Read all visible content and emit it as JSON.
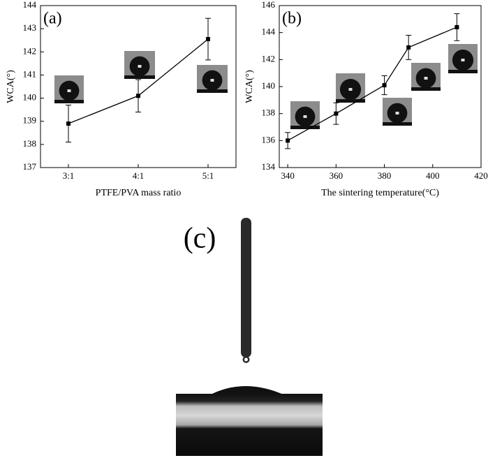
{
  "chart_data": [
    {
      "type": "line",
      "panel_label": "(a)",
      "x_label": "PTFE/PVA mass ratio",
      "y_label": "WCA(°)",
      "categories": [
        "3:1",
        "4:1",
        "5:1"
      ],
      "values": [
        138.9,
        140.1,
        142.55
      ],
      "errors": [
        0.8,
        0.7,
        0.9
      ],
      "color": "#000000",
      "ylim": [
        137,
        144
      ],
      "yticks": [
        137,
        138,
        139,
        140,
        141,
        142,
        143,
        144
      ]
    },
    {
      "type": "line",
      "panel_label": "(b)",
      "x_label": "The sintering temperature(°C)",
      "y_label": "WCA(°)",
      "x": [
        340,
        360,
        380,
        390,
        410
      ],
      "values": [
        136,
        138,
        140.1,
        142.9,
        144.4
      ],
      "errors": [
        0.6,
        0.8,
        0.7,
        0.9,
        1.0
      ],
      "color": "#000000",
      "xlim": [
        336.5,
        420
      ],
      "xticks": [
        340,
        360,
        380,
        400,
        420
      ],
      "ylim": [
        134,
        146
      ],
      "yticks": [
        134,
        136,
        138,
        140,
        142,
        144,
        146
      ]
    }
  ],
  "panel_c": {
    "label": "(c)"
  }
}
